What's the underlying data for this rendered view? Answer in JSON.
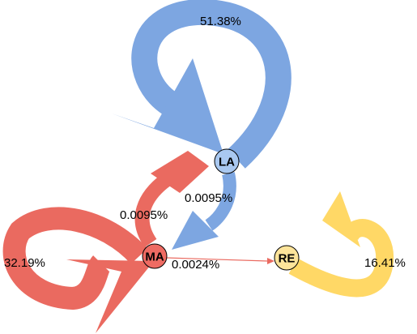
{
  "colors": {
    "LA": "#7da6e1",
    "MA": "#ea6a60",
    "RE": "#ffd866",
    "LA_fill": "#a9c8f0",
    "MA_fill": "#ee6b63",
    "RE_fill": "#fde49a"
  },
  "nodes": {
    "LA": {
      "label": "LA"
    },
    "MA": {
      "label": "MA"
    },
    "RE": {
      "label": "RE"
    }
  },
  "edges": {
    "LA_LA": {
      "label": "51.38%"
    },
    "MA_MA": {
      "label": "32.19%"
    },
    "RE_RE": {
      "label": "16.41%"
    },
    "MA_LA": {
      "label": "0.0095%"
    },
    "LA_MA": {
      "label": "0.0095%"
    },
    "MA_RE": {
      "label": "0.0024%"
    }
  }
}
